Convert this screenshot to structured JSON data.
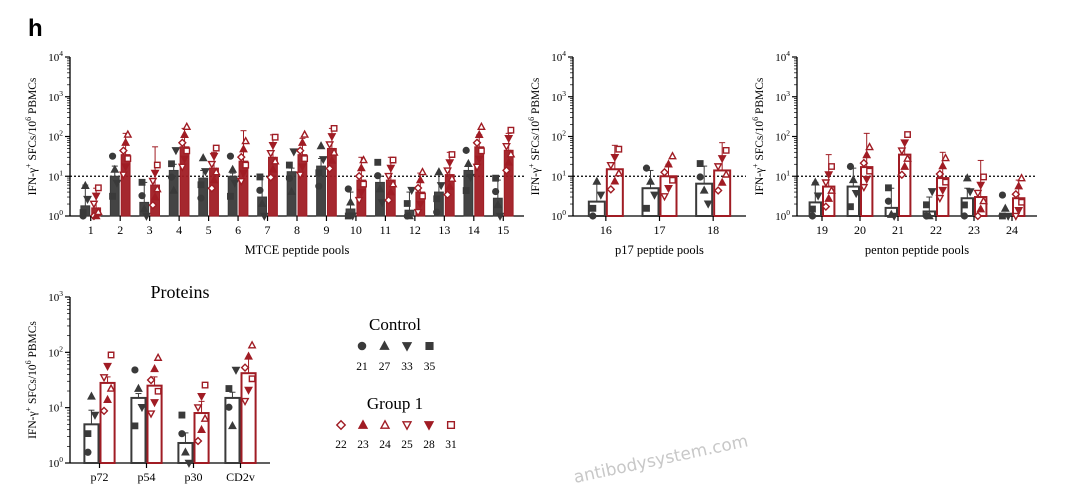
{
  "panel_letter": "h",
  "watermark": "antibodysystem.com",
  "colors": {
    "control": "#3a3a3a",
    "group1": "#a01c24"
  },
  "legend": {
    "control_title": "Control",
    "control_entries": [
      {
        "label": "21",
        "marker": "circle"
      },
      {
        "label": "27",
        "marker": "triangle-up"
      },
      {
        "label": "33",
        "marker": "triangle-down"
      },
      {
        "label": "35",
        "marker": "square"
      }
    ],
    "group1_title": "Group 1",
    "group1_entries": [
      {
        "label": "22",
        "marker": "diamond-open"
      },
      {
        "label": "23",
        "marker": "triangle-up"
      },
      {
        "label": "24",
        "marker": "triangle-up-open"
      },
      {
        "label": "25",
        "marker": "triangle-down-open"
      },
      {
        "label": "28",
        "marker": "triangle-down"
      },
      {
        "label": "31",
        "marker": "square-open"
      }
    ]
  },
  "chart_data": [
    {
      "id": "mtce",
      "type": "bar",
      "scale": "log",
      "ylim": [
        1,
        10000
      ],
      "yticks": [
        "10^0",
        "10^1",
        "10^2",
        "10^3",
        "10^4"
      ],
      "ylabel": "IFN-γ+ SFCs/10^6 PBMCs",
      "xlabel": "MTCE peptide pools",
      "threshold": 10,
      "categories": [
        "1",
        "2",
        "3",
        "4",
        "5",
        "6",
        "7",
        "8",
        "9",
        "10",
        "11",
        "12",
        "13",
        "14",
        "15"
      ],
      "series": [
        {
          "group": "control",
          "fill": "solid",
          "values": [
            1.8,
            10,
            2.2,
            14,
            9,
            10,
            3,
            13,
            18,
            1.5,
            7,
            1.4,
            4,
            14,
            2.8
          ],
          "err": [
            6,
            18,
            7,
            20,
            14,
            12,
            10,
            16,
            28,
            4,
            10,
            4,
            12,
            18,
            8
          ]
        },
        {
          "group": "group1",
          "fill": "solid",
          "values": [
            1.6,
            35,
            6,
            55,
            16,
            24,
            30,
            35,
            50,
            8,
            8,
            4,
            11,
            55,
            45
          ],
          "err": [
            5,
            120,
            55,
            160,
            40,
            140,
            110,
            90,
            160,
            30,
            30,
            12,
            40,
            110,
            120
          ]
        }
      ]
    },
    {
      "id": "p17",
      "type": "bar",
      "scale": "log",
      "ylim": [
        1,
        10000
      ],
      "yticks": [
        "10^0",
        "10^1",
        "10^2",
        "10^3",
        "10^4"
      ],
      "ylabel": "IFN-γ+ SFCs/10^6 PBMCs",
      "xlabel": "p17 peptide pools",
      "threshold": 10,
      "categories": [
        "16",
        "17",
        "18"
      ],
      "series": [
        {
          "group": "control",
          "fill": "open",
          "values": [
            2.3,
            5,
            6.5
          ],
          "err": [
            7,
            14,
            18
          ]
        },
        {
          "group": "group1",
          "fill": "open",
          "values": [
            15,
            10,
            14
          ],
          "err": [
            60,
            20,
            70
          ]
        }
      ]
    },
    {
      "id": "penton",
      "type": "bar",
      "scale": "log",
      "ylim": [
        1,
        10000
      ],
      "yticks": [
        "10^0",
        "10^1",
        "10^2",
        "10^3",
        "10^4"
      ],
      "ylabel": "IFN-γ+ SFCs/10^6 PBMCs",
      "xlabel": "penton peptide pools",
      "threshold": 10,
      "categories": [
        "19",
        "20",
        "21",
        "22",
        "23",
        "24"
      ],
      "series": [
        {
          "group": "control",
          "fill": "open",
          "values": [
            2.2,
            5.5,
            1.6,
            1.3,
            2.8,
            1.05
          ],
          "err": [
            7,
            16,
            5,
            3,
            5,
            1.1
          ]
        },
        {
          "group": "group1",
          "fill": "open",
          "values": [
            5.5,
            17,
            35,
            9,
            3,
            2.8
          ],
          "err": [
            35,
            120,
            80,
            40,
            25,
            8
          ]
        }
      ]
    },
    {
      "id": "proteins",
      "type": "bar",
      "scale": "log",
      "ylim": [
        1,
        1000
      ],
      "yticks": [
        "10^0",
        "10^1",
        "10^2",
        "10^3"
      ],
      "ylabel": "IFN-γ+ SFCs/10^6 PBMCs",
      "xlabel": "",
      "title": "Proteins",
      "threshold": null,
      "categories": [
        "p72",
        "p54",
        "p30",
        "CD2v"
      ],
      "series": [
        {
          "group": "control",
          "fill": "open",
          "values": [
            5,
            15,
            2.3,
            15
          ],
          "err": [
            9,
            18,
            3.5,
            19
          ]
        },
        {
          "group": "group1",
          "fill": "open",
          "values": [
            28,
            25,
            8,
            42
          ],
          "err": [
            36,
            36,
            13,
            80
          ]
        }
      ]
    }
  ]
}
